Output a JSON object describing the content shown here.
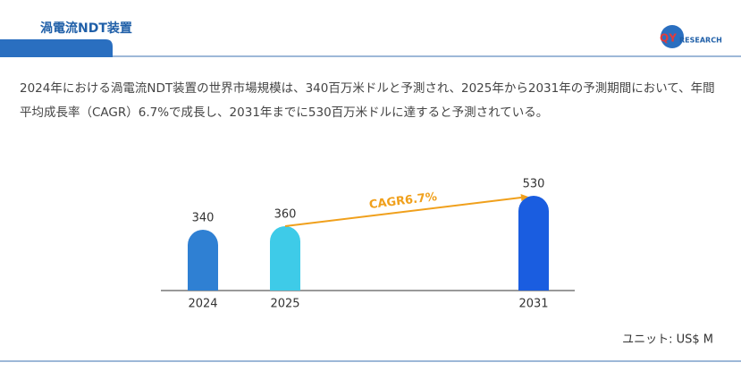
{
  "chart_data": {
    "type": "bar",
    "title": "渦電流NDT装置",
    "subtitle": "2024年における渦電流NDT装置の世界市場規模は、340百万米ドルと予測され、2025年から2031年の予測期間において、年間平均成長率（CAGR）6.7%で成長し、2031年までに530百万米ドルに達すると予測されている。",
    "categories": [
      "2024",
      "2025",
      "2031"
    ],
    "values": [
      340,
      360,
      530
    ],
    "colors": [
      "#2f80d3",
      "#3ecbe8",
      "#1a5de0"
    ],
    "annotation": "CAGR6.7%",
    "annotation_color": "#f0a01c",
    "unit_label": "ユニット: US$ M"
  },
  "logo": {
    "mark": "QY",
    "text": "RESEARCH"
  }
}
